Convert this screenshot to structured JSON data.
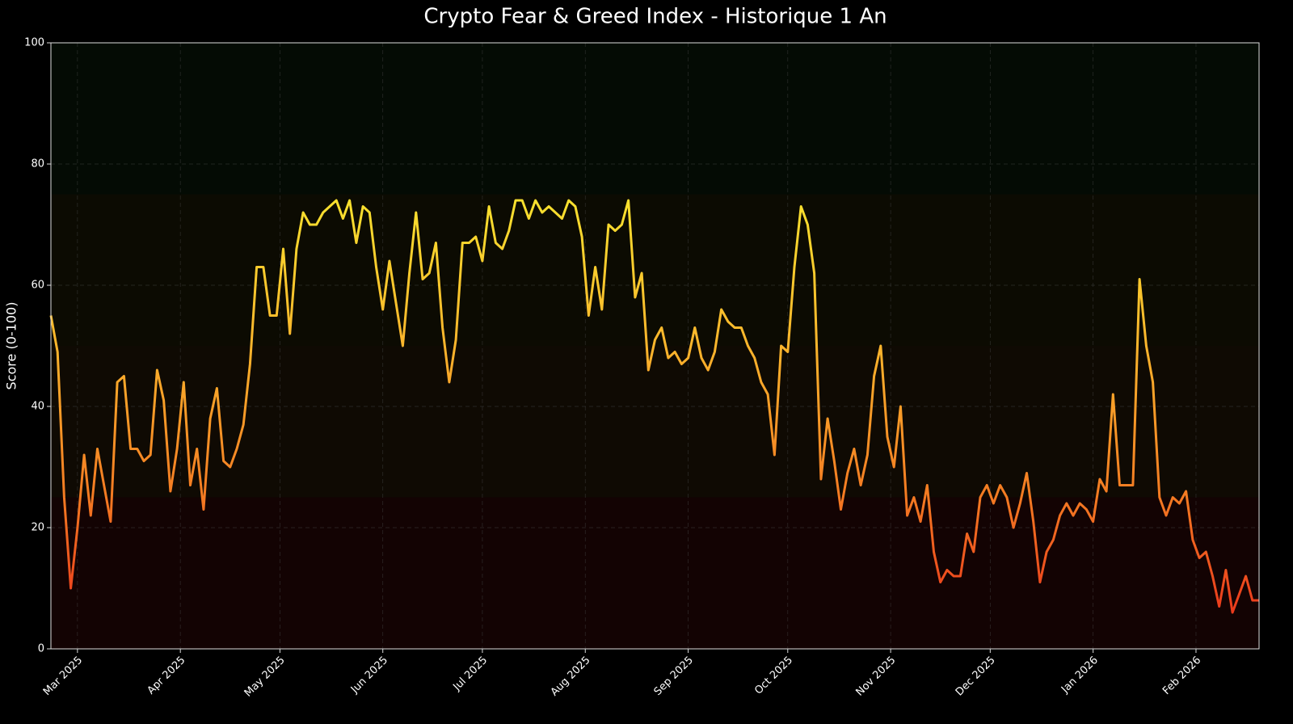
{
  "chart_data": {
    "type": "line",
    "title": "Crypto Fear & Greed Index - Historique 1 An",
    "ylabel": "Score (0-100)",
    "x": [
      0,
      2,
      4,
      6,
      8,
      10,
      12,
      14,
      16,
      18,
      20,
      22,
      24,
      26,
      28,
      30,
      32,
      34,
      36,
      38,
      40,
      42,
      44,
      46,
      48,
      50,
      52,
      54,
      56,
      58,
      60,
      62,
      64,
      66,
      68,
      70,
      72,
      74,
      76,
      78,
      80,
      82,
      84,
      86,
      88,
      90,
      92,
      94,
      96,
      98,
      100,
      102,
      104,
      106,
      108,
      110,
      112,
      114,
      116,
      118,
      120,
      122,
      124,
      126,
      128,
      130,
      132,
      134,
      136,
      138,
      140,
      142,
      144,
      146,
      148,
      150,
      152,
      154,
      156,
      158,
      160,
      162,
      164,
      166,
      168,
      170,
      172,
      174,
      176,
      178,
      180,
      182,
      184,
      186,
      188,
      190,
      192,
      194,
      196,
      198,
      200,
      202,
      204,
      206,
      208,
      210,
      212,
      214,
      216,
      218,
      220,
      222,
      224,
      226,
      228,
      230,
      232,
      234,
      236,
      238,
      240,
      242,
      244,
      246,
      248,
      250,
      252,
      254,
      256,
      258,
      260,
      262,
      264,
      266,
      268,
      270,
      272,
      274,
      276,
      278,
      280,
      282,
      284,
      286,
      288,
      290,
      292,
      294,
      296,
      298,
      300,
      302,
      304,
      306,
      308,
      310,
      312,
      314,
      316,
      318,
      320,
      322,
      324,
      326,
      328,
      330,
      332,
      334,
      336,
      338,
      340,
      342,
      344,
      346,
      348,
      350,
      352,
      354,
      356,
      358,
      360,
      362,
      364
    ],
    "values": [
      55,
      49,
      25,
      10,
      20,
      32,
      22,
      33,
      27,
      21,
      44,
      45,
      33,
      33,
      31,
      32,
      46,
      41,
      26,
      33,
      44,
      27,
      33,
      23,
      38,
      43,
      31,
      30,
      33,
      37,
      47,
      63,
      63,
      55,
      55,
      66,
      52,
      66,
      72,
      70,
      70,
      72,
      73,
      74,
      71,
      74,
      67,
      73,
      72,
      63,
      56,
      64,
      57,
      50,
      62,
      72,
      61,
      62,
      67,
      53,
      44,
      51,
      67,
      67,
      68,
      64,
      73,
      67,
      66,
      69,
      74,
      74,
      71,
      74,
      72,
      73,
      72,
      71,
      74,
      73,
      68,
      55,
      63,
      56,
      70,
      69,
      70,
      74,
      58,
      62,
      46,
      51,
      53,
      48,
      49,
      47,
      48,
      53,
      48,
      46,
      49,
      56,
      54,
      53,
      53,
      50,
      48,
      44,
      42,
      32,
      50,
      49,
      63,
      73,
      70,
      62,
      28,
      38,
      31,
      23,
      29,
      33,
      27,
      32,
      45,
      50,
      35,
      30,
      40,
      22,
      25,
      21,
      27,
      16,
      11,
      13,
      12,
      12,
      19,
      16,
      25,
      27,
      24,
      27,
      25,
      20,
      24,
      29,
      21,
      11,
      16,
      18,
      22,
      24,
      22,
      24,
      23,
      21,
      28,
      26,
      42,
      27,
      27,
      27,
      61,
      50,
      44,
      25,
      22,
      25,
      24,
      26,
      18,
      15,
      16,
      12,
      7,
      13,
      6,
      9,
      12,
      8,
      8
    ],
    "xlim": [
      0,
      364
    ],
    "xticks": [
      {
        "value": 8,
        "label": "Mar 2025"
      },
      {
        "value": 39,
        "label": "Apr 2025"
      },
      {
        "value": 69,
        "label": "May 2025"
      },
      {
        "value": 100,
        "label": "Jun 2025"
      },
      {
        "value": 130,
        "label": "Jul 2025"
      },
      {
        "value": 161,
        "label": "Aug 2025"
      },
      {
        "value": 192,
        "label": "Sep 2025"
      },
      {
        "value": 222,
        "label": "Oct 2025"
      },
      {
        "value": 253,
        "label": "Nov 2025"
      },
      {
        "value": 283,
        "label": "Dec 2025"
      },
      {
        "value": 314,
        "label": "Jan 2026"
      },
      {
        "value": 345,
        "label": "Feb 2026"
      }
    ],
    "ylim": [
      0,
      100
    ],
    "yticks": [
      0,
      20,
      40,
      60,
      80,
      100
    ],
    "grid": true,
    "colormap": [
      "#e8261a",
      "#f47a22",
      "#fbb52c",
      "#f8e22e",
      "#c2e436"
    ],
    "bands": [
      {
        "from": 0,
        "to": 25,
        "color": "#130303"
      },
      {
        "from": 25,
        "to": 50,
        "color": "#0f0a03"
      },
      {
        "from": 50,
        "to": 75,
        "color": "#0c0b02"
      },
      {
        "from": 75,
        "to": 100,
        "color": "#040b04"
      }
    ]
  }
}
